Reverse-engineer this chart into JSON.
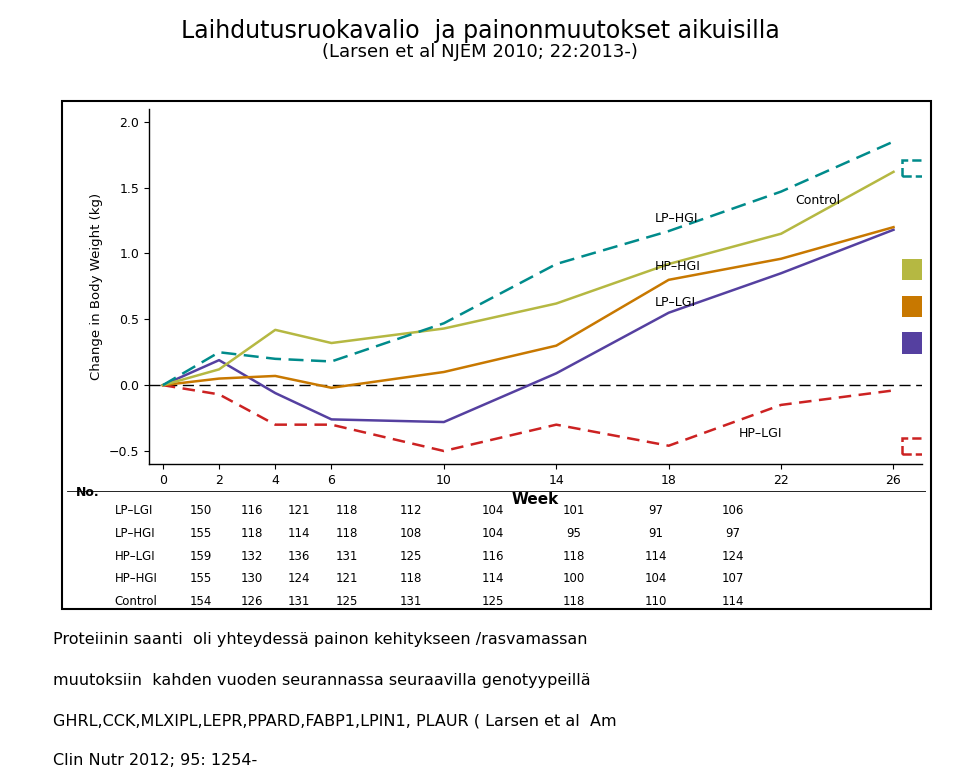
{
  "title1": "Laihdutusruokavalio  ja painonmuutokset aikuisilla",
  "title2": "(Larsen et al NJEM 2010; 22:2013-)",
  "xlabel": "Week",
  "ylabel": "Change in Body Weight (kg)",
  "ylim": [
    -0.6,
    2.1
  ],
  "yticks": [
    -0.5,
    0.0,
    0.5,
    1.0,
    1.5,
    2.0
  ],
  "xticks": [
    0,
    2,
    4,
    6,
    10,
    14,
    18,
    22,
    26
  ],
  "weeks": [
    0,
    2,
    4,
    6,
    10,
    14,
    18,
    22,
    26
  ],
  "LP_HGI": [
    0.0,
    0.25,
    0.2,
    0.18,
    0.47,
    0.92,
    1.17,
    1.47,
    1.85
  ],
  "LP_HGI_color": "#008b8b",
  "Control": [
    0.0,
    0.12,
    0.42,
    0.32,
    0.43,
    0.62,
    0.92,
    1.15,
    1.62
  ],
  "Control_color": "#b5b842",
  "HP_HGI": [
    0.0,
    0.05,
    0.07,
    -0.02,
    0.1,
    0.3,
    0.8,
    0.96,
    1.2
  ],
  "HP_HGI_color": "#c87800",
  "LP_LGI": [
    0.0,
    0.19,
    -0.06,
    -0.26,
    -0.28,
    0.09,
    0.55,
    0.85,
    1.18
  ],
  "LP_LGI_color": "#5540a0",
  "HP_LGI": [
    0.0,
    -0.07,
    -0.3,
    -0.3,
    -0.5,
    -0.3,
    -0.46,
    -0.15,
    -0.04
  ],
  "HP_LGI_color": "#cc2222",
  "legend_labels": [
    "LP–HGI",
    "Control",
    "HP–HGI",
    "LP–LGI",
    "HP–LGI"
  ],
  "legend_colors": [
    "#008b8b",
    "#b5b842",
    "#c87800",
    "#5540a0",
    "#cc2222"
  ],
  "legend_styles": [
    "dashed",
    "solid",
    "solid",
    "solid",
    "dashed"
  ],
  "bottom_text_lines": [
    "Proteiinin saanti  oli yhteydessä painon kehitykseen /rasvamassan",
    "muutoksiin  kahden vuoden seurannassa seuraavilla genotyypeillä",
    "GHRL,CCK,MLXIPL,LEPR,PPARD,FABP1,LPIN1, PLAUR ( Larsen et al  Am",
    "Clin Nutr 2012; 95: 1254-"
  ],
  "table_header": "No.",
  "table_rows": [
    [
      "LP–LGI",
      "150",
      "116",
      "121",
      "118",
      "112",
      "104",
      "101",
      "97",
      "106"
    ],
    [
      "LP–HGI",
      "155",
      "118",
      "114",
      "118",
      "108",
      "104",
      "95",
      "91",
      "97"
    ],
    [
      "HP–LGI",
      "159",
      "132",
      "136",
      "131",
      "125",
      "116",
      "118",
      "114",
      "124"
    ],
    [
      "HP–HGI",
      "155",
      "130",
      "124",
      "121",
      "118",
      "114",
      "100",
      "104",
      "107"
    ],
    [
      "Control",
      "154",
      "126",
      "131",
      "125",
      "131",
      "125",
      "118",
      "110",
      "114"
    ]
  ]
}
